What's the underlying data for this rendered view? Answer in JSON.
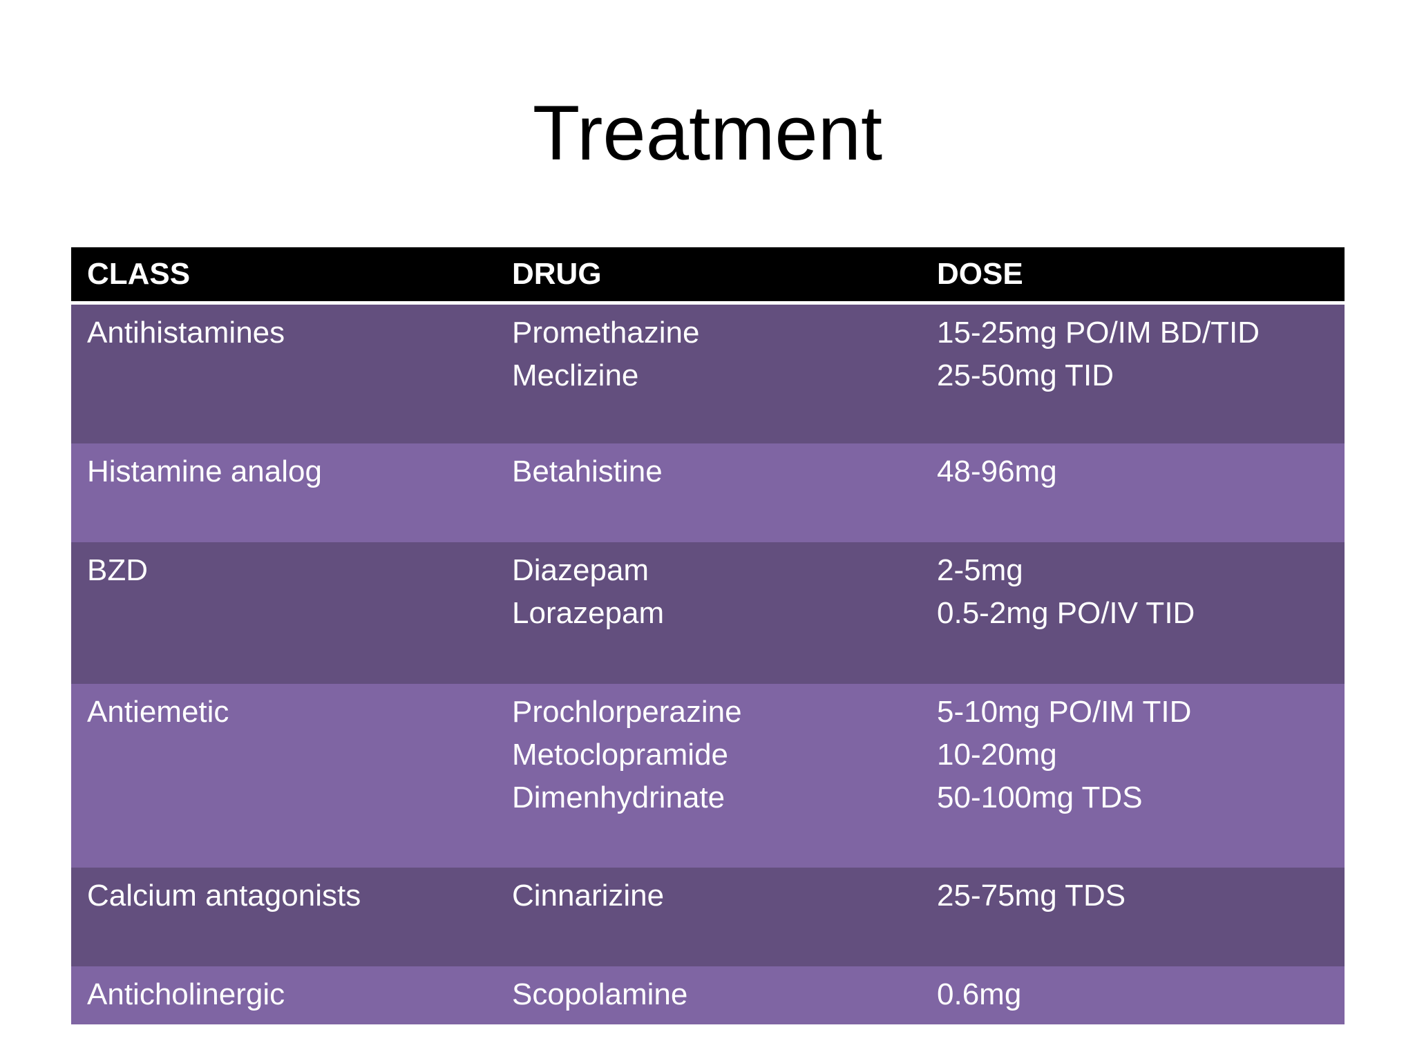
{
  "title": "Treatment",
  "table": {
    "headers": [
      "CLASS",
      "DRUG",
      "DOSE"
    ],
    "rows": [
      {
        "class": "Antihistamines",
        "drugs": [
          "Promethazine",
          "Meclizine"
        ],
        "doses": [
          "15-25mg PO/IM BD/TID",
          "25-50mg TID"
        ]
      },
      {
        "class": "Histamine analog",
        "drugs": [
          "Betahistine"
        ],
        "doses": [
          "48-96mg"
        ]
      },
      {
        "class": "BZD",
        "drugs": [
          "Diazepam",
          "Lorazepam"
        ],
        "doses": [
          "2-5mg",
          "0.5-2mg PO/IV TID"
        ]
      },
      {
        "class": "Antiemetic",
        "drugs": [
          "Prochlorperazine",
          "Metoclopramide",
          "Dimenhydrinate"
        ],
        "doses": [
          "5-10mg PO/IM TID",
          "10-20mg",
          "50-100mg TDS"
        ]
      },
      {
        "class": "Calcium antagonists",
        "drugs": [
          "Cinnarizine"
        ],
        "doses": [
          "25-75mg TDS"
        ]
      },
      {
        "class": "Anticholinergic",
        "drugs": [
          "Scopolamine"
        ],
        "doses": [
          "0.6mg"
        ]
      }
    ]
  },
  "colors": {
    "header_bg": "#000000",
    "row_dark": "#634f7e",
    "row_light": "#7f65a3",
    "text_light": "#ffffff"
  }
}
